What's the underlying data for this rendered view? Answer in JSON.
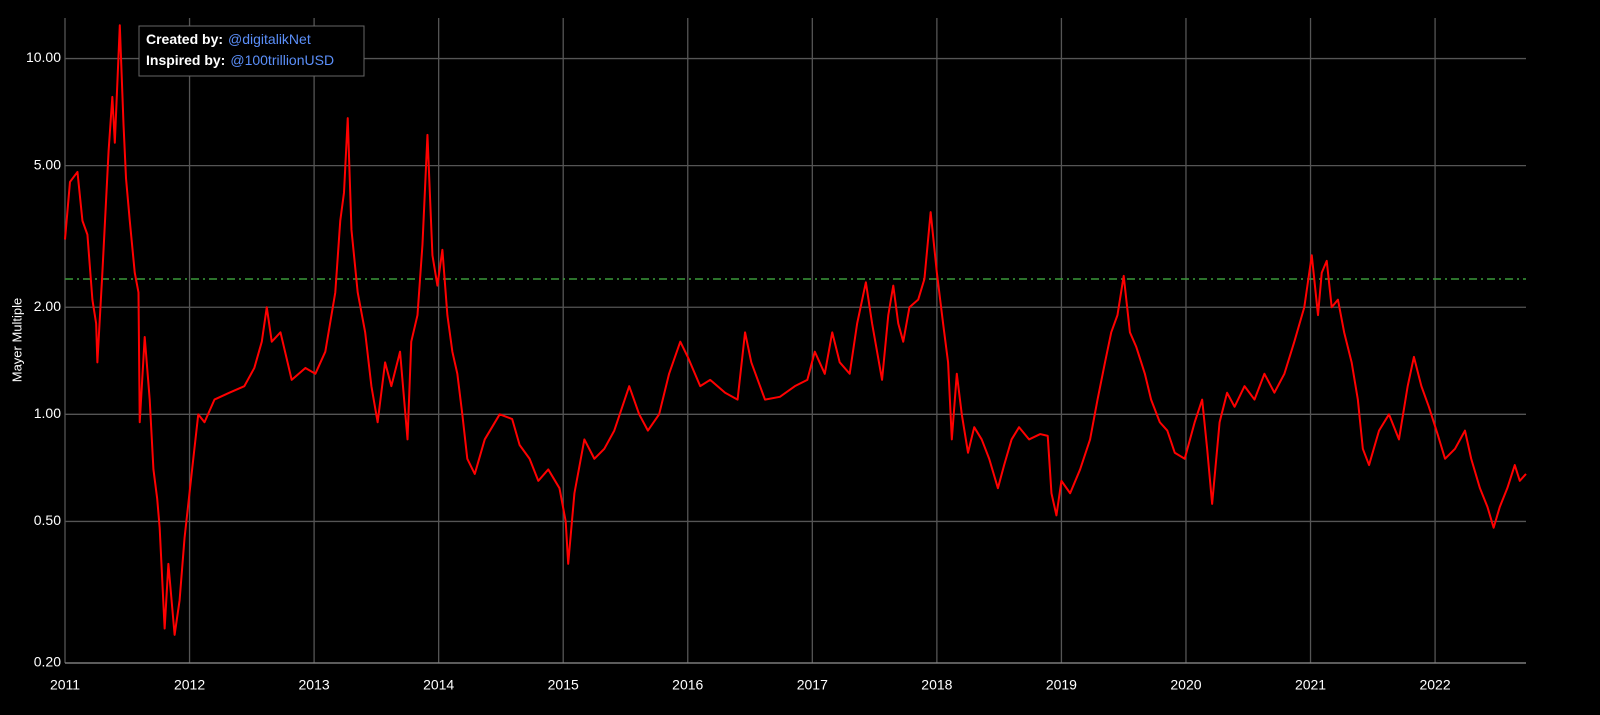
{
  "chart_data": {
    "type": "line",
    "y_label": "Mayer Multiple",
    "credits": [
      {
        "label": "Created by:",
        "handle": "@digitalikNet"
      },
      {
        "label": "Inspired by:",
        "handle": "@100trillionUSD"
      }
    ],
    "log_y": true,
    "grid": true,
    "color": "#ff0000",
    "reference_line": {
      "value": 2.4,
      "color": "#3a9a3a",
      "style": "dashdot"
    },
    "xlim": [
      2011,
      2022.73
    ],
    "xticks": [
      2011,
      2012,
      2013,
      2014,
      2015,
      2016,
      2017,
      2018,
      2019,
      2020,
      2021,
      2022
    ],
    "ylim": [
      0.2,
      13
    ],
    "yticks": [
      {
        "value": 0.2,
        "label": "0.20"
      },
      {
        "value": 0.5,
        "label": "0.50"
      },
      {
        "value": 1,
        "label": "1.00"
      },
      {
        "value": 2,
        "label": "2.00"
      },
      {
        "value": 5,
        "label": "5.00"
      },
      {
        "value": 10,
        "label": "10.00"
      }
    ],
    "x": [
      2011.0,
      2011.04,
      2011.1,
      2011.14,
      2011.18,
      2011.22,
      2011.25,
      2011.26,
      2011.3,
      2011.35,
      2011.38,
      2011.4,
      2011.44,
      2011.47,
      2011.49,
      2011.52,
      2011.56,
      2011.59,
      2011.6,
      2011.64,
      2011.68,
      2011.71,
      2011.74,
      2011.76,
      2011.8,
      2011.83,
      2011.88,
      2011.92,
      2011.96,
      2012.03,
      2012.07,
      2012.12,
      2012.2,
      2012.32,
      2012.44,
      2012.52,
      2012.58,
      2012.62,
      2012.66,
      2012.73,
      2012.82,
      2012.93,
      2013.01,
      2013.09,
      2013.17,
      2013.21,
      2013.24,
      2013.27,
      2013.3,
      2013.35,
      2013.41,
      2013.46,
      2013.51,
      2013.57,
      2013.62,
      2013.69,
      2013.75,
      2013.78,
      2013.83,
      2013.87,
      2013.91,
      2013.95,
      2013.99,
      2014.03,
      2014.07,
      2014.11,
      2014.15,
      2014.19,
      2014.23,
      2014.29,
      2014.37,
      2014.49,
      2014.59,
      2014.65,
      2014.73,
      2014.8,
      2014.88,
      2014.97,
      2015.02,
      2015.04,
      2015.09,
      2015.17,
      2015.25,
      2015.33,
      2015.41,
      2015.53,
      2015.61,
      2015.68,
      2015.77,
      2015.85,
      2015.94,
      2016.0,
      2016.1,
      2016.18,
      2016.3,
      2016.4,
      2016.46,
      2016.51,
      2016.62,
      2016.74,
      2016.86,
      2016.96,
      2017.02,
      2017.1,
      2017.16,
      2017.22,
      2017.3,
      2017.36,
      2017.43,
      2017.48,
      2017.52,
      2017.56,
      2017.61,
      2017.65,
      2017.69,
      2017.73,
      2017.78,
      2017.85,
      2017.9,
      2017.95,
      2018.0,
      2018.05,
      2018.09,
      2018.12,
      2018.16,
      2018.2,
      2018.25,
      2018.3,
      2018.36,
      2018.42,
      2018.49,
      2018.54,
      2018.6,
      2018.66,
      2018.74,
      2018.83,
      2018.89,
      2018.92,
      2018.96,
      2019.0,
      2019.07,
      2019.15,
      2019.23,
      2019.29,
      2019.35,
      2019.4,
      2019.45,
      2019.5,
      2019.55,
      2019.6,
      2019.67,
      2019.72,
      2019.79,
      2019.85,
      2019.91,
      2019.99,
      2020.07,
      2020.13,
      2020.17,
      2020.21,
      2020.27,
      2020.33,
      2020.39,
      2020.47,
      2020.55,
      2020.63,
      2020.71,
      2020.79,
      2020.87,
      2020.95,
      2021.01,
      2021.06,
      2021.09,
      2021.13,
      2021.17,
      2021.22,
      2021.27,
      2021.33,
      2021.38,
      2021.42,
      2021.47,
      2021.55,
      2021.63,
      2021.71,
      2021.78,
      2021.83,
      2021.89,
      2021.95,
      2022.02,
      2022.08,
      2022.16,
      2022.24,
      2022.29,
      2022.36,
      2022.42,
      2022.47,
      2022.52,
      2022.58,
      2022.64,
      2022.68,
      2022.73
    ],
    "values": [
      3.1,
      4.5,
      4.8,
      3.5,
      3.2,
      2.1,
      1.8,
      1.4,
      2.5,
      5.5,
      7.8,
      5.8,
      12.4,
      6.5,
      4.6,
      3.5,
      2.5,
      2.2,
      0.95,
      1.65,
      1.1,
      0.7,
      0.58,
      0.48,
      0.25,
      0.38,
      0.24,
      0.3,
      0.45,
      0.75,
      1.0,
      0.95,
      1.1,
      1.15,
      1.2,
      1.35,
      1.6,
      2.0,
      1.6,
      1.7,
      1.25,
      1.35,
      1.3,
      1.5,
      2.2,
      3.5,
      4.2,
      6.8,
      3.3,
      2.2,
      1.7,
      1.2,
      0.95,
      1.4,
      1.2,
      1.5,
      0.85,
      1.6,
      1.9,
      3.0,
      6.1,
      2.8,
      2.3,
      2.9,
      1.9,
      1.5,
      1.3,
      1.0,
      0.75,
      0.68,
      0.85,
      1.0,
      0.97,
      0.82,
      0.75,
      0.65,
      0.7,
      0.62,
      0.5,
      0.38,
      0.6,
      0.85,
      0.75,
      0.8,
      0.9,
      1.2,
      1.0,
      0.9,
      1.0,
      1.3,
      1.6,
      1.45,
      1.2,
      1.25,
      1.15,
      1.1,
      1.7,
      1.4,
      1.1,
      1.12,
      1.2,
      1.25,
      1.5,
      1.3,
      1.7,
      1.4,
      1.3,
      1.8,
      2.35,
      1.8,
      1.5,
      1.25,
      1.9,
      2.3,
      1.8,
      1.6,
      2.0,
      2.1,
      2.4,
      3.7,
      2.5,
      1.8,
      1.4,
      0.85,
      1.3,
      1.0,
      0.78,
      0.92,
      0.85,
      0.75,
      0.62,
      0.72,
      0.85,
      0.92,
      0.85,
      0.88,
      0.87,
      0.6,
      0.52,
      0.65,
      0.6,
      0.7,
      0.85,
      1.1,
      1.4,
      1.7,
      1.9,
      2.45,
      1.7,
      1.55,
      1.3,
      1.1,
      0.95,
      0.9,
      0.78,
      0.75,
      0.95,
      1.1,
      0.8,
      0.56,
      0.95,
      1.15,
      1.05,
      1.2,
      1.1,
      1.3,
      1.15,
      1.3,
      1.6,
      2.0,
      2.8,
      1.9,
      2.5,
      2.7,
      2.0,
      2.1,
      1.7,
      1.4,
      1.1,
      0.8,
      0.72,
      0.9,
      1.0,
      0.85,
      1.2,
      1.45,
      1.2,
      1.05,
      0.88,
      0.75,
      0.8,
      0.9,
      0.75,
      0.62,
      0.55,
      0.48,
      0.55,
      0.62,
      0.72,
      0.65,
      0.68
    ]
  }
}
